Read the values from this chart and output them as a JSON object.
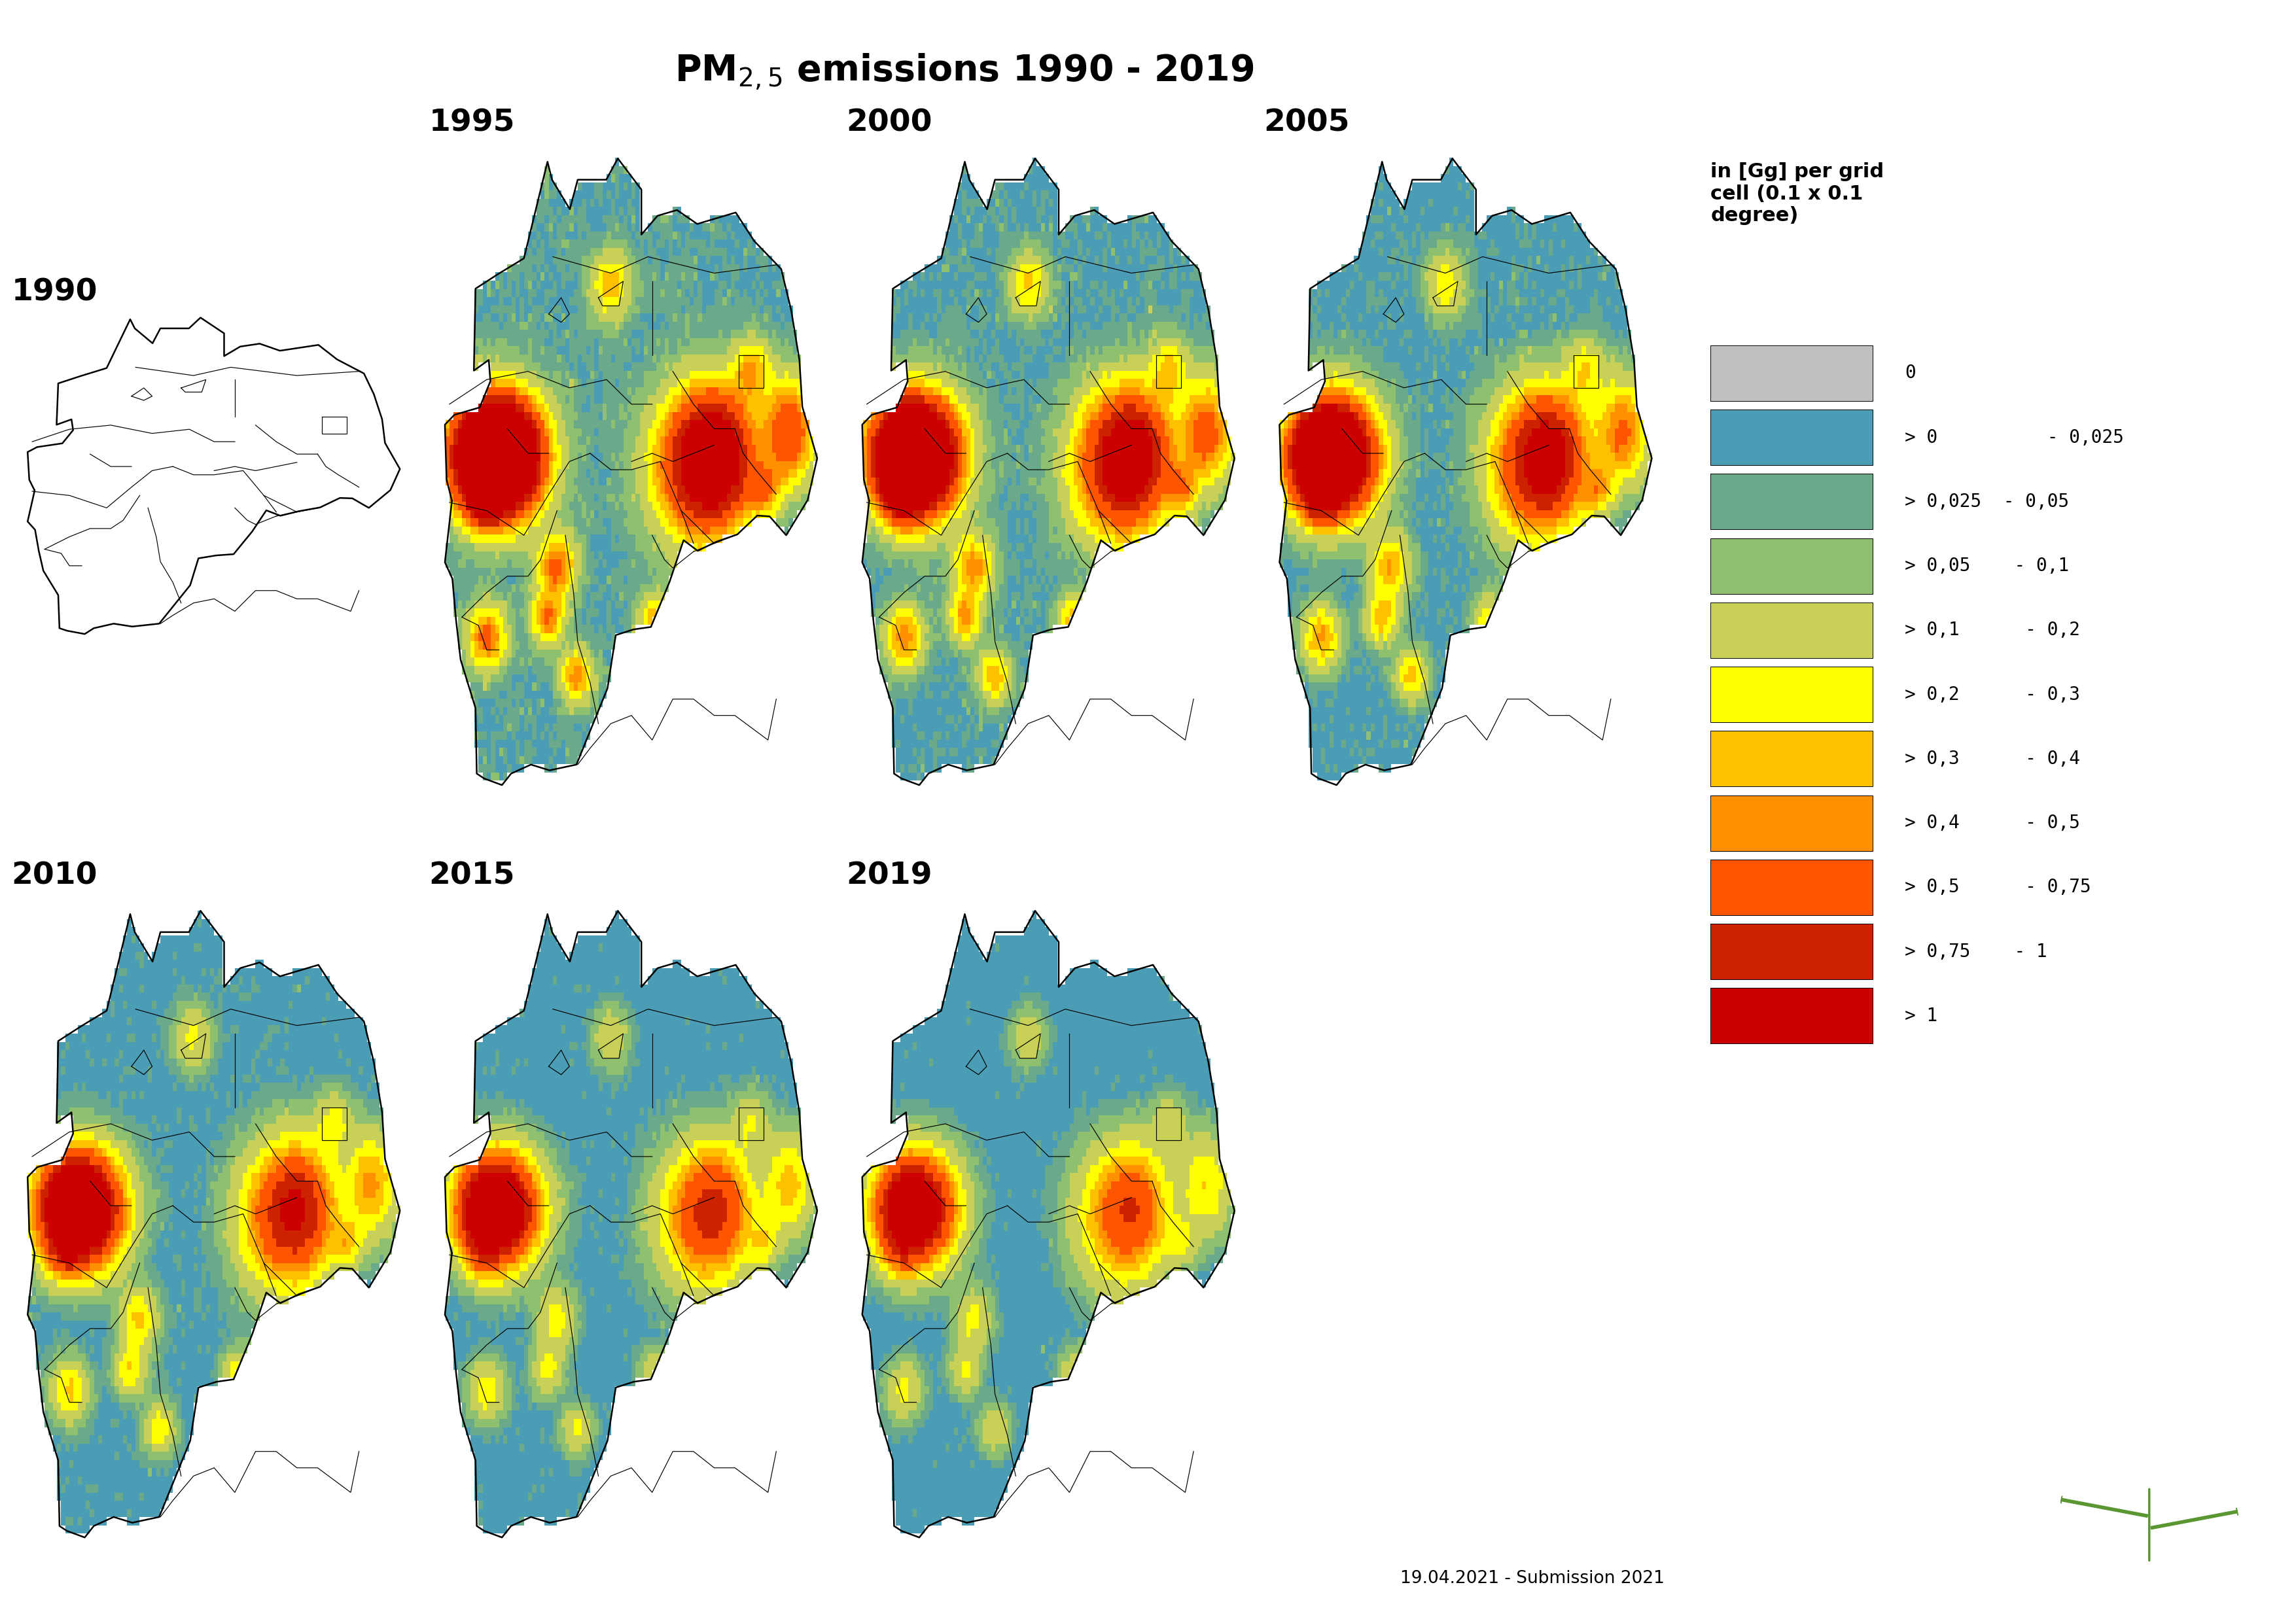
{
  "title_text": "PM$_{2,5}$ emissions 1990 - 2019",
  "title_fontsize": 40,
  "background_color": "#ffffff",
  "years": [
    "1990",
    "1995",
    "2000",
    "2005",
    "2010",
    "2015",
    "2019"
  ],
  "year_label_fontsize": 34,
  "legend_title": "in [Gg] per grid\ncell (0.1 x 0.1\ndegree)",
  "legend_title_fontsize": 22,
  "legend_label_fontsize": 20,
  "legend_labels": [
    "0",
    "> 0          - 0,025",
    "> 0,025  - 0,05",
    "> 0,05    - 0,1",
    "> 0,1      - 0,2",
    "> 0,2      - 0,3",
    "> 0,3      - 0,4",
    "> 0,4      - 0,5",
    "> 0,5      - 0,75",
    "> 0,75    - 1",
    "> 1"
  ],
  "legend_colors": [
    "#c0c0c0",
    "#4a9db5",
    "#6aaa8a",
    "#8fc070",
    "#c8d058",
    "#ffff00",
    "#ffc000",
    "#ff9000",
    "#ff5500",
    "#cc2200",
    "#cc0000"
  ],
  "border_color": "#000000",
  "date_text": "19.04.2021 - Submission 2021",
  "date_fontsize": 19,
  "uba_green": "#5a9632",
  "germany_lon_min": 5.85,
  "germany_lon_max": 15.05,
  "germany_lat_min": 47.25,
  "germany_lat_max": 55.1
}
